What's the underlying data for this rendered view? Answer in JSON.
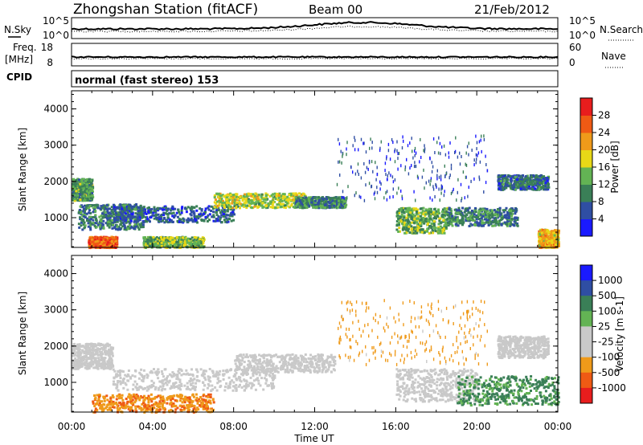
{
  "header": {
    "station": "Zhongshan Station (fitACF)",
    "beam": "Beam 00",
    "date": "21/Feb/2012"
  },
  "top_panels": {
    "nsky_label": "N.Sky",
    "nsky_ticks": [
      "10^5",
      "10^0"
    ],
    "nsearch_label": "N.Search",
    "nsearch_ticks": [
      "10^5",
      "10^0"
    ],
    "freq_label": "Freq.",
    "freq_unit": "[MHz]",
    "freq_ticks": [
      "18",
      "8"
    ],
    "nave_label": "Nave",
    "nave_ticks": [
      "60",
      "0"
    ],
    "cpid_label": "CPID",
    "cpid_text": "normal (fast stereo) 153"
  },
  "colors": {
    "power": [
      "#1a1aff",
      "#2f4ea3",
      "#3a7f57",
      "#63b354",
      "#e8d817",
      "#ef9a1a",
      "#ef5a14",
      "#e81d1d"
    ],
    "velocity": [
      "#e81d1d",
      "#ef5a14",
      "#ef9a1a",
      "#c9c9c9",
      "#c9c9c9",
      "#63b354",
      "#3a7f57",
      "#2f4ea3",
      "#1a1aff"
    ]
  },
  "chart_data": [
    {
      "type": "heatmap",
      "name": "power",
      "ylabel": "Slant Range [km]",
      "ylim": [
        180,
        4500
      ],
      "yticks": [
        1000,
        2000,
        3000,
        4000
      ],
      "xlim": [
        0,
        24
      ],
      "colorbar_label": "Power [dB]",
      "colorbar_ticks": [
        4,
        8,
        12,
        16,
        20,
        24,
        28
      ],
      "colorbar_range": [
        0,
        32
      ],
      "echo_regions": [
        {
          "t": [
            0.0,
            1.0
          ],
          "r": [
            1500,
            2100
          ],
          "level": 12
        },
        {
          "t": [
            0.3,
            3.5
          ],
          "r": [
            700,
            1400
          ],
          "level": 9
        },
        {
          "t": [
            0.8,
            2.2
          ],
          "r": [
            200,
            500
          ],
          "level": 26
        },
        {
          "t": [
            3.5,
            6.5
          ],
          "r": [
            200,
            500
          ],
          "level": 14
        },
        {
          "t": [
            2.0,
            8.0
          ],
          "r": [
            900,
            1350
          ],
          "level": 7
        },
        {
          "t": [
            7.0,
            11.5
          ],
          "r": [
            1300,
            1700
          ],
          "level": 16
        },
        {
          "t": [
            11.0,
            13.5
          ],
          "r": [
            1300,
            1600
          ],
          "level": 10
        },
        {
          "t": [
            16.0,
            18.5
          ],
          "r": [
            600,
            1300
          ],
          "level": 13
        },
        {
          "t": [
            18.5,
            22.0
          ],
          "r": [
            800,
            1300
          ],
          "level": 10
        },
        {
          "t": [
            21.0,
            23.5
          ],
          "r": [
            1800,
            2200
          ],
          "level": 8
        },
        {
          "t": [
            23.0,
            24.0
          ],
          "r": [
            200,
            700
          ],
          "level": 20
        },
        {
          "t": [
            13.0,
            20.5
          ],
          "r": [
            1500,
            3300
          ],
          "level": 6
        }
      ]
    },
    {
      "type": "heatmap",
      "name": "velocity",
      "ylabel": "Slant Range [km]",
      "ylim": [
        180,
        4500
      ],
      "yticks": [
        1000,
        2000,
        3000,
        4000
      ],
      "xlim": [
        0,
        24
      ],
      "xlabel": "Time UT",
      "xticks": [
        "00:00",
        "04:00",
        "08:00",
        "12:00",
        "16:00",
        "20:00",
        "00:00"
      ],
      "colorbar_label": "Velocity [m s-1]",
      "colorbar_ticks": [
        "1000",
        "500",
        "100",
        "25",
        "-25",
        "-100",
        "-500",
        "-1000"
      ],
      "echo_regions": [
        {
          "t": [
            0.0,
            2.0
          ],
          "r": [
            1400,
            2100
          ],
          "v": 0
        },
        {
          "t": [
            1.0,
            7.0
          ],
          "r": [
            200,
            700
          ],
          "v": -400
        },
        {
          "t": [
            2.0,
            10.0
          ],
          "r": [
            800,
            1400
          ],
          "v": 0
        },
        {
          "t": [
            8.0,
            13.0
          ],
          "r": [
            1300,
            1800
          ],
          "v": 0
        },
        {
          "t": [
            16.0,
            20.0
          ],
          "r": [
            500,
            1400
          ],
          "v": 0
        },
        {
          "t": [
            19.0,
            24.0
          ],
          "r": [
            400,
            1200
          ],
          "v": 120
        },
        {
          "t": [
            21.0,
            23.5
          ],
          "r": [
            1700,
            2300
          ],
          "v": 0
        },
        {
          "t": [
            13.0,
            20.5
          ],
          "r": [
            1500,
            3300
          ],
          "v": -200
        }
      ]
    }
  ]
}
